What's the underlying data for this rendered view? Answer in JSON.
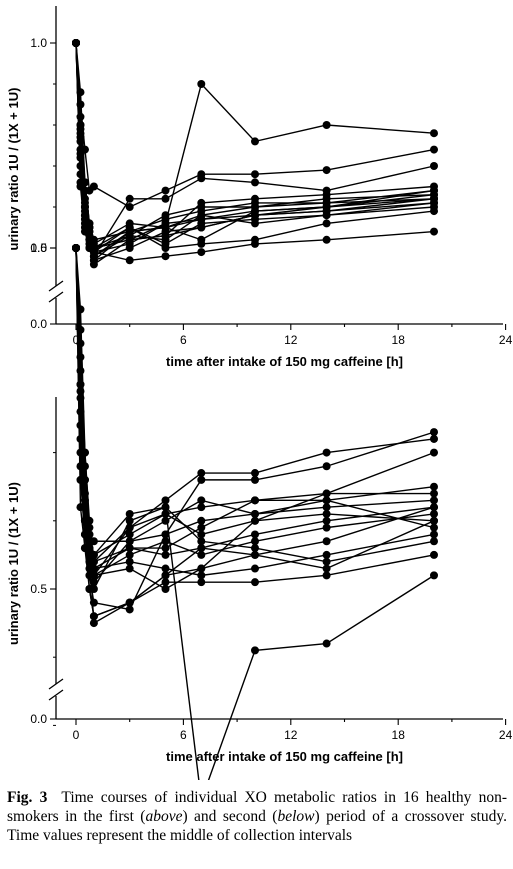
{
  "chart_data": [
    {
      "type": "line",
      "panel": "above",
      "xlabel": "time after intake of 150 mg caffeine [h]",
      "ylabel": "urinary ratio 1U / (1X + 1U)",
      "x_ticks": [
        "0",
        "6",
        "12",
        "18",
        "24"
      ],
      "y_ticks": [
        "0.0",
        "0.5",
        "1.0"
      ],
      "xlim": [
        -1.5,
        24
      ],
      "ylim": [
        0.45,
        1.1
      ],
      "y_axis_break": true,
      "grid": false,
      "marker": "filled-circle",
      "x": [
        0,
        0.25,
        0.5,
        0.75,
        1,
        3,
        5,
        7,
        10,
        14,
        20
      ],
      "series": [
        {
          "values": [
            1.0,
            0.8,
            0.62,
            0.53,
            0.49,
            0.47,
            0.48,
            0.49,
            0.51,
            0.52,
            0.54
          ]
        },
        {
          "values": [
            1.0,
            0.82,
            0.66,
            0.56,
            0.5,
            0.52,
            0.56,
            0.9,
            0.76,
            0.8,
            0.78
          ]
        },
        {
          "values": [
            1.0,
            0.85,
            0.74,
            0.64,
            0.65,
            0.6,
            0.64,
            0.68,
            0.68,
            0.69,
            0.74
          ]
        },
        {
          "values": [
            1.0,
            0.78,
            0.64,
            0.55,
            0.48,
            0.62,
            0.62,
            0.67,
            0.66,
            0.64,
            0.7
          ]
        },
        {
          "values": [
            1.0,
            0.76,
            0.6,
            0.52,
            0.46,
            0.52,
            0.53,
            0.61,
            0.62,
            0.63,
            0.65
          ]
        },
        {
          "values": [
            1.0,
            0.72,
            0.58,
            0.52,
            0.47,
            0.54,
            0.55,
            0.57,
            0.59,
            0.6,
            0.64
          ]
        },
        {
          "values": [
            1.0,
            0.7,
            0.56,
            0.5,
            0.48,
            0.53,
            0.52,
            0.58,
            0.6,
            0.62,
            0.63
          ]
        },
        {
          "values": [
            1.0,
            0.68,
            0.57,
            0.51,
            0.47,
            0.5,
            0.54,
            0.55,
            0.58,
            0.59,
            0.62
          ]
        },
        {
          "values": [
            1.0,
            0.66,
            0.55,
            0.53,
            0.5,
            0.55,
            0.51,
            0.56,
            0.57,
            0.58,
            0.61
          ]
        },
        {
          "values": [
            1.0,
            0.65,
            0.54,
            0.5,
            0.49,
            0.51,
            0.56,
            0.57,
            0.58,
            0.6,
            0.62
          ]
        },
        {
          "values": [
            1.0,
            0.8,
            0.6,
            0.54,
            0.51,
            0.56,
            0.55,
            0.52,
            0.59,
            0.6,
            0.63
          ]
        },
        {
          "values": [
            1.0,
            0.74,
            0.59,
            0.55,
            0.52,
            0.54,
            0.57,
            0.59,
            0.61,
            0.61,
            0.64
          ]
        },
        {
          "values": [
            1.0,
            0.88,
            0.66,
            0.56,
            0.49,
            0.55,
            0.5,
            0.51,
            0.52,
            0.56,
            0.59
          ]
        },
        {
          "values": [
            1.0,
            0.79,
            0.61,
            0.55,
            0.5,
            0.53,
            0.58,
            0.6,
            0.6,
            0.61,
            0.62
          ]
        },
        {
          "values": [
            1.0,
            0.77,
            0.6,
            0.52,
            0.48,
            0.54,
            0.55,
            0.58,
            0.56,
            0.58,
            0.6
          ]
        },
        {
          "values": [
            1.0,
            0.73,
            0.58,
            0.54,
            0.5,
            0.52,
            0.53,
            0.55,
            0.58,
            0.59,
            0.61
          ]
        }
      ]
    },
    {
      "type": "line",
      "panel": "below",
      "xlabel": "time after intake of 150 mg caffeine [h]",
      "ylabel": "urinary ratio 1U / (1X + 1U)",
      "x_ticks": [
        "0",
        "6",
        "12",
        "18",
        "24"
      ],
      "y_ticks": [
        "0.0",
        "0.5",
        "1.0"
      ],
      "xlim": [
        -1.5,
        24
      ],
      "ylim": [
        0.25,
        1.1
      ],
      "y_axis_break": true,
      "grid": false,
      "marker": "filled-circle",
      "x": [
        0,
        0.25,
        0.5,
        0.75,
        1,
        3,
        5,
        7,
        10,
        14,
        20
      ],
      "series": [
        {
          "values": [
            1.0,
            0.8,
            0.6,
            0.5,
            0.46,
            0.48,
            0.52,
            0.53,
            0.55,
            0.57,
            0.62
          ]
        },
        {
          "values": [
            1.0,
            0.82,
            0.66,
            0.58,
            0.55,
            0.61,
            0.62,
            0.19,
            0.41,
            0.42,
            0.52
          ]
        },
        {
          "values": [
            1.0,
            0.84,
            0.7,
            0.6,
            0.54,
            0.59,
            0.63,
            0.67,
            0.67,
            0.7,
            0.72
          ]
        },
        {
          "values": [
            1.0,
            0.78,
            0.63,
            0.58,
            0.57,
            0.57,
            0.58,
            0.66,
            0.66,
            0.68,
            0.73
          ]
        },
        {
          "values": [
            1.0,
            0.76,
            0.62,
            0.56,
            0.53,
            0.56,
            0.56,
            0.59,
            0.63,
            0.64,
            0.7
          ]
        },
        {
          "values": [
            1.0,
            0.72,
            0.6,
            0.55,
            0.52,
            0.53,
            0.5,
            0.53,
            0.6,
            0.64,
            0.64
          ]
        },
        {
          "values": [
            1.0,
            0.7,
            0.58,
            0.52,
            0.48,
            0.47,
            0.58,
            0.6,
            0.61,
            0.63,
            0.65
          ]
        },
        {
          "values": [
            1.0,
            0.68,
            0.56,
            0.5,
            0.46,
            0.48,
            0.52,
            0.56,
            0.58,
            0.6,
            0.62
          ]
        },
        {
          "values": [
            1.0,
            0.66,
            0.58,
            0.54,
            0.52,
            0.55,
            0.57,
            0.55,
            0.57,
            0.59,
            0.61
          ]
        },
        {
          "values": [
            1.0,
            0.62,
            0.56,
            0.53,
            0.51,
            0.57,
            0.6,
            0.63,
            0.61,
            0.62,
            0.63
          ]
        },
        {
          "values": [
            1.0,
            0.86,
            0.68,
            0.56,
            0.5,
            0.6,
            0.62,
            0.57,
            0.56,
            0.54,
            0.57
          ]
        },
        {
          "values": [
            1.0,
            0.74,
            0.6,
            0.56,
            0.55,
            0.58,
            0.61,
            0.58,
            0.6,
            0.61,
            0.6
          ]
        },
        {
          "values": [
            1.0,
            0.88,
            0.66,
            0.55,
            0.45,
            0.48,
            0.51,
            0.51,
            0.51,
            0.52,
            0.55
          ]
        },
        {
          "values": [
            1.0,
            0.79,
            0.64,
            0.57,
            0.54,
            0.56,
            0.55,
            0.56,
            0.55,
            0.53,
            0.6
          ]
        },
        {
          "values": [
            1.0,
            0.91,
            0.7,
            0.59,
            0.53,
            0.54,
            0.53,
            0.52,
            0.53,
            0.55,
            0.58
          ]
        },
        {
          "values": [
            1.0,
            0.8,
            0.62,
            0.56,
            0.52,
            0.59,
            0.61,
            0.62,
            0.63,
            0.63,
            0.59
          ]
        }
      ]
    }
  ],
  "caption": {
    "fig_label": "Fig. 3",
    "text_1": "Time courses of individual XO metabolic ratios in 16 healthy non-smokers in the first (",
    "word_above": "above",
    "text_2": ") and second (",
    "word_below": "below",
    "text_3": ") period of a crossover study. Time values represent the middle of collection intervals"
  }
}
